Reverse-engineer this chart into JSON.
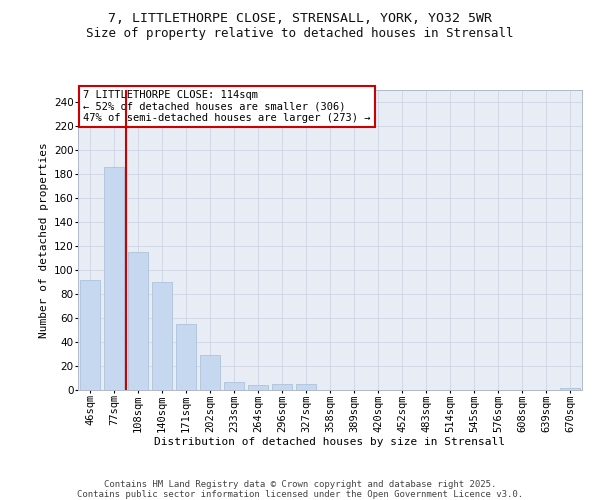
{
  "title_line1": "7, LITTLETHORPE CLOSE, STRENSALL, YORK, YO32 5WR",
  "title_line2": "Size of property relative to detached houses in Strensall",
  "xlabel": "Distribution of detached houses by size in Strensall",
  "ylabel": "Number of detached properties",
  "categories": [
    "46sqm",
    "77sqm",
    "108sqm",
    "140sqm",
    "171sqm",
    "202sqm",
    "233sqm",
    "264sqm",
    "296sqm",
    "327sqm",
    "358sqm",
    "389sqm",
    "420sqm",
    "452sqm",
    "483sqm",
    "514sqm",
    "545sqm",
    "576sqm",
    "608sqm",
    "639sqm",
    "670sqm"
  ],
  "values": [
    92,
    186,
    115,
    90,
    55,
    29,
    7,
    4,
    5,
    5,
    0,
    0,
    0,
    0,
    0,
    0,
    0,
    0,
    0,
    0,
    2
  ],
  "bar_color": "#c5d8f0",
  "bar_edge_color": "#a8bcd4",
  "vline_color": "#cc0000",
  "annotation_line1": "7 LITTLETHORPE CLOSE: 114sqm",
  "annotation_line2": "← 52% of detached houses are smaller (306)",
  "annotation_line3": "47% of semi-detached houses are larger (273) →",
  "annotation_box_facecolor": "#ffffff",
  "annotation_box_edgecolor": "#cc0000",
  "ylim_max": 250,
  "yticks": [
    0,
    20,
    40,
    60,
    80,
    100,
    120,
    140,
    160,
    180,
    200,
    220,
    240
  ],
  "grid_color": "#cdd5e5",
  "background_color": "#e8edf5",
  "footer_line1": "Contains HM Land Registry data © Crown copyright and database right 2025.",
  "footer_line2": "Contains public sector information licensed under the Open Government Licence v3.0.",
  "title1_fontsize": 9.5,
  "title2_fontsize": 9.0,
  "axis_label_fontsize": 8.0,
  "tick_fontsize": 7.5,
  "annot_fontsize": 7.5,
  "footer_fontsize": 6.5
}
